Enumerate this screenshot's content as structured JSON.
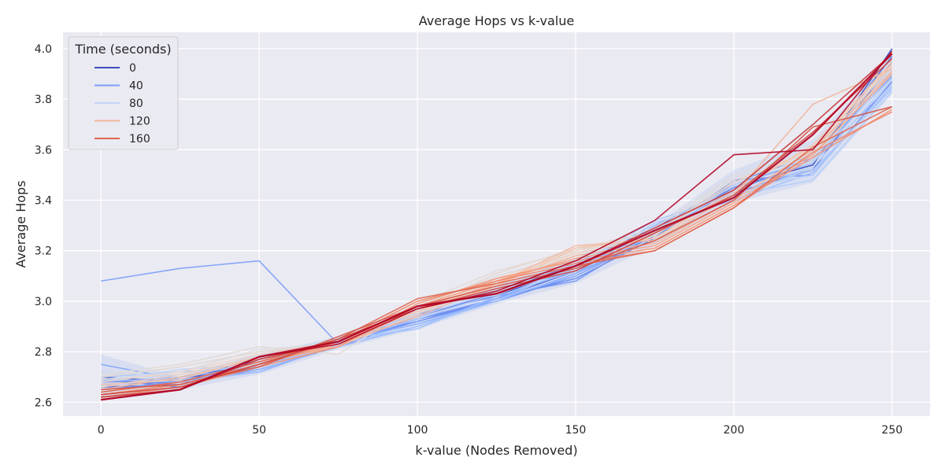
{
  "chart_data": {
    "type": "line",
    "title": "Average Hops vs k-value",
    "xlabel": "k-value (Nodes Removed)",
    "ylabel": "Average Hops",
    "xlim": [
      -12,
      262
    ],
    "ylim": [
      2.545,
      4.065
    ],
    "xticks": [
      0,
      50,
      100,
      150,
      200,
      250
    ],
    "yticks": [
      2.6,
      2.8,
      3.0,
      3.2,
      3.4,
      3.6,
      3.8,
      4.0
    ],
    "xtick_labels": [
      "0",
      "50",
      "100",
      "150",
      "200",
      "250"
    ],
    "ytick_labels": [
      "2.6",
      "2.8",
      "3.0",
      "3.2",
      "3.4",
      "3.6",
      "3.8",
      "4.0"
    ],
    "x": [
      0,
      25,
      50,
      75,
      100,
      125,
      150,
      175,
      200,
      225,
      250
    ],
    "grid": true,
    "legend": {
      "title": "Time (seconds)",
      "placement": "top-left",
      "entries": [
        {
          "label": "0",
          "color": "#3b4cc0"
        },
        {
          "label": "40",
          "color": "#7b9ff9"
        },
        {
          "label": "80",
          "color": "#c0d4f5"
        },
        {
          "label": "120",
          "color": "#f2b79c"
        },
        {
          "label": "160",
          "color": "#e0654f"
        }
      ]
    },
    "confidence_band": {
      "color": "#9bb5ef",
      "upper": [
        2.79,
        2.7,
        2.79,
        2.86,
        2.97,
        3.06,
        3.17,
        3.3,
        3.52,
        3.64,
        3.97
      ],
      "lower": [
        2.62,
        2.65,
        2.71,
        2.81,
        2.89,
        2.99,
        3.07,
        3.22,
        3.39,
        3.47,
        3.82
      ]
    },
    "series": [
      {
        "color": "#3b4cc0",
        "values": [
          2.7,
          2.68,
          2.78,
          2.84,
          2.95,
          3.02,
          3.14,
          3.28,
          3.45,
          3.54,
          4.0
        ]
      },
      {
        "color": "#4358cb",
        "values": [
          2.66,
          2.67,
          2.77,
          2.84,
          2.93,
          3.01,
          3.12,
          3.27,
          3.43,
          3.52,
          3.95
        ]
      },
      {
        "color": "#4f69d9",
        "values": [
          2.68,
          2.69,
          2.76,
          2.83,
          2.94,
          3.03,
          3.15,
          3.29,
          3.46,
          3.56,
          3.97
        ]
      },
      {
        "color": "#5b7ae5",
        "values": [
          2.67,
          2.68,
          2.73,
          2.82,
          2.93,
          3.0,
          3.1,
          3.26,
          3.44,
          3.55,
          3.9
        ]
      },
      {
        "color": "#6788ee",
        "values": [
          2.69,
          2.66,
          2.75,
          2.84,
          2.92,
          3.01,
          3.09,
          3.25,
          3.48,
          3.5,
          3.87
        ]
      },
      {
        "color": "#7396f5",
        "values": [
          2.65,
          2.68,
          2.74,
          2.83,
          2.95,
          3.02,
          3.08,
          3.27,
          3.47,
          3.58,
          3.93
        ]
      },
      {
        "color": "#7b9ff9",
        "values": [
          3.08,
          3.13,
          3.16,
          2.83,
          2.92,
          3.0,
          3.11,
          3.26,
          3.45,
          3.57,
          3.89
        ]
      },
      {
        "color": "#84a7fc",
        "values": [
          2.75,
          2.69,
          2.72,
          2.83,
          2.93,
          3.01,
          3.13,
          3.28,
          3.46,
          3.56,
          3.91
        ]
      },
      {
        "color": "#8db0fe",
        "values": [
          2.68,
          2.7,
          2.74,
          2.84,
          2.91,
          3.0,
          3.11,
          3.3,
          3.44,
          3.55,
          3.86
        ]
      },
      {
        "color": "#96b7ff",
        "values": [
          2.67,
          2.69,
          2.73,
          2.82,
          2.9,
          3.01,
          3.1,
          3.27,
          3.43,
          3.53,
          3.88
        ]
      },
      {
        "color": "#a1c0ff",
        "values": [
          2.69,
          2.68,
          2.72,
          2.85,
          2.89,
          3.02,
          3.12,
          3.31,
          3.4,
          3.51,
          3.85
        ]
      },
      {
        "color": "#aac7fd",
        "values": [
          2.7,
          2.72,
          2.74,
          2.83,
          2.9,
          3.0,
          3.14,
          3.32,
          3.42,
          3.52,
          3.84
        ]
      },
      {
        "color": "#b3cdfb",
        "values": [
          2.66,
          2.7,
          2.76,
          2.84,
          2.93,
          3.03,
          3.13,
          3.29,
          3.42,
          3.48,
          3.83
        ]
      },
      {
        "color": "#bcd2f7",
        "values": [
          2.68,
          2.73,
          2.75,
          2.85,
          2.94,
          3.04,
          3.15,
          3.28,
          3.44,
          3.5,
          3.86
        ]
      },
      {
        "color": "#c0d4f5",
        "values": [
          2.69,
          2.71,
          2.78,
          2.84,
          2.95,
          3.05,
          3.16,
          3.27,
          3.41,
          3.53,
          3.88
        ]
      },
      {
        "color": "#cad8ef",
        "values": [
          2.72,
          2.7,
          2.79,
          2.85,
          2.96,
          3.06,
          3.17,
          3.26,
          3.46,
          3.55,
          3.9
        ]
      },
      {
        "color": "#d2dbe8",
        "values": [
          2.7,
          2.74,
          2.8,
          2.84,
          2.97,
          3.08,
          3.18,
          3.27,
          3.47,
          3.56,
          3.92
        ]
      },
      {
        "color": "#dadce0",
        "values": [
          2.69,
          2.72,
          2.81,
          2.83,
          2.98,
          3.1,
          3.19,
          3.28,
          3.49,
          3.57,
          3.91
        ]
      },
      {
        "color": "#e1dad6",
        "values": [
          2.71,
          2.75,
          2.82,
          2.79,
          2.99,
          3.12,
          3.2,
          3.29,
          3.5,
          3.59,
          3.93
        ]
      },
      {
        "color": "#e7d7cd",
        "values": [
          2.7,
          2.74,
          2.8,
          2.83,
          2.97,
          3.11,
          3.21,
          3.27,
          3.48,
          3.58,
          3.94
        ]
      },
      {
        "color": "#ecd3c5",
        "values": [
          2.68,
          2.72,
          2.79,
          2.84,
          2.96,
          3.09,
          3.2,
          3.26,
          3.47,
          3.6,
          3.95
        ]
      },
      {
        "color": "#f1ccb8",
        "values": [
          2.66,
          2.71,
          2.78,
          2.82,
          2.95,
          3.08,
          3.19,
          3.25,
          3.44,
          3.61,
          3.93
        ]
      },
      {
        "color": "#f2b79c",
        "values": [
          2.65,
          2.7,
          2.77,
          2.83,
          2.94,
          3.07,
          3.22,
          3.24,
          3.42,
          3.78,
          3.92
        ]
      },
      {
        "color": "#f4c5ad",
        "values": [
          2.67,
          2.69,
          2.78,
          2.84,
          2.96,
          3.06,
          3.21,
          3.25,
          3.43,
          3.62,
          3.94
        ]
      },
      {
        "color": "#f5b094",
        "values": [
          2.64,
          2.68,
          2.76,
          2.82,
          2.97,
          3.07,
          3.18,
          3.23,
          3.4,
          3.6,
          3.91
        ]
      },
      {
        "color": "#f6a283",
        "values": [
          2.63,
          2.67,
          2.75,
          2.83,
          2.98,
          3.08,
          3.17,
          3.22,
          3.39,
          3.58,
          3.9
        ]
      },
      {
        "color": "#f39475",
        "values": [
          2.62,
          2.66,
          2.74,
          2.82,
          2.99,
          3.09,
          3.16,
          3.21,
          3.38,
          3.57,
          3.76
        ]
      },
      {
        "color": "#ee8468",
        "values": [
          2.63,
          2.67,
          2.75,
          2.84,
          3.0,
          3.08,
          3.15,
          3.2,
          3.37,
          3.59,
          3.75
        ]
      },
      {
        "color": "#e0654f",
        "values": [
          2.64,
          2.68,
          2.76,
          2.85,
          3.01,
          3.07,
          3.14,
          3.2,
          3.37,
          3.61,
          3.77
        ]
      },
      {
        "color": "#d85646",
        "values": [
          2.65,
          2.67,
          2.74,
          2.86,
          2.98,
          3.06,
          3.13,
          3.24,
          3.4,
          3.69,
          3.77
        ]
      },
      {
        "color": "#d0473d",
        "values": [
          2.63,
          2.66,
          2.75,
          2.85,
          2.97,
          3.05,
          3.12,
          3.27,
          3.42,
          3.67,
          3.96
        ]
      },
      {
        "color": "#c53334",
        "values": [
          2.62,
          2.65,
          2.77,
          2.84,
          2.98,
          3.03,
          3.14,
          3.29,
          3.44,
          3.7,
          3.98
        ]
      },
      {
        "color": "#b40426",
        "values": [
          2.61,
          2.65,
          2.78,
          2.83,
          2.97,
          3.04,
          3.16,
          3.32,
          3.58,
          3.6,
          3.99
        ]
      },
      {
        "color": "#b40426",
        "values": [
          2.61,
          2.65,
          2.78,
          2.84,
          2.98,
          3.03,
          3.14,
          3.28,
          3.41,
          3.66,
          3.98
        ]
      }
    ]
  }
}
